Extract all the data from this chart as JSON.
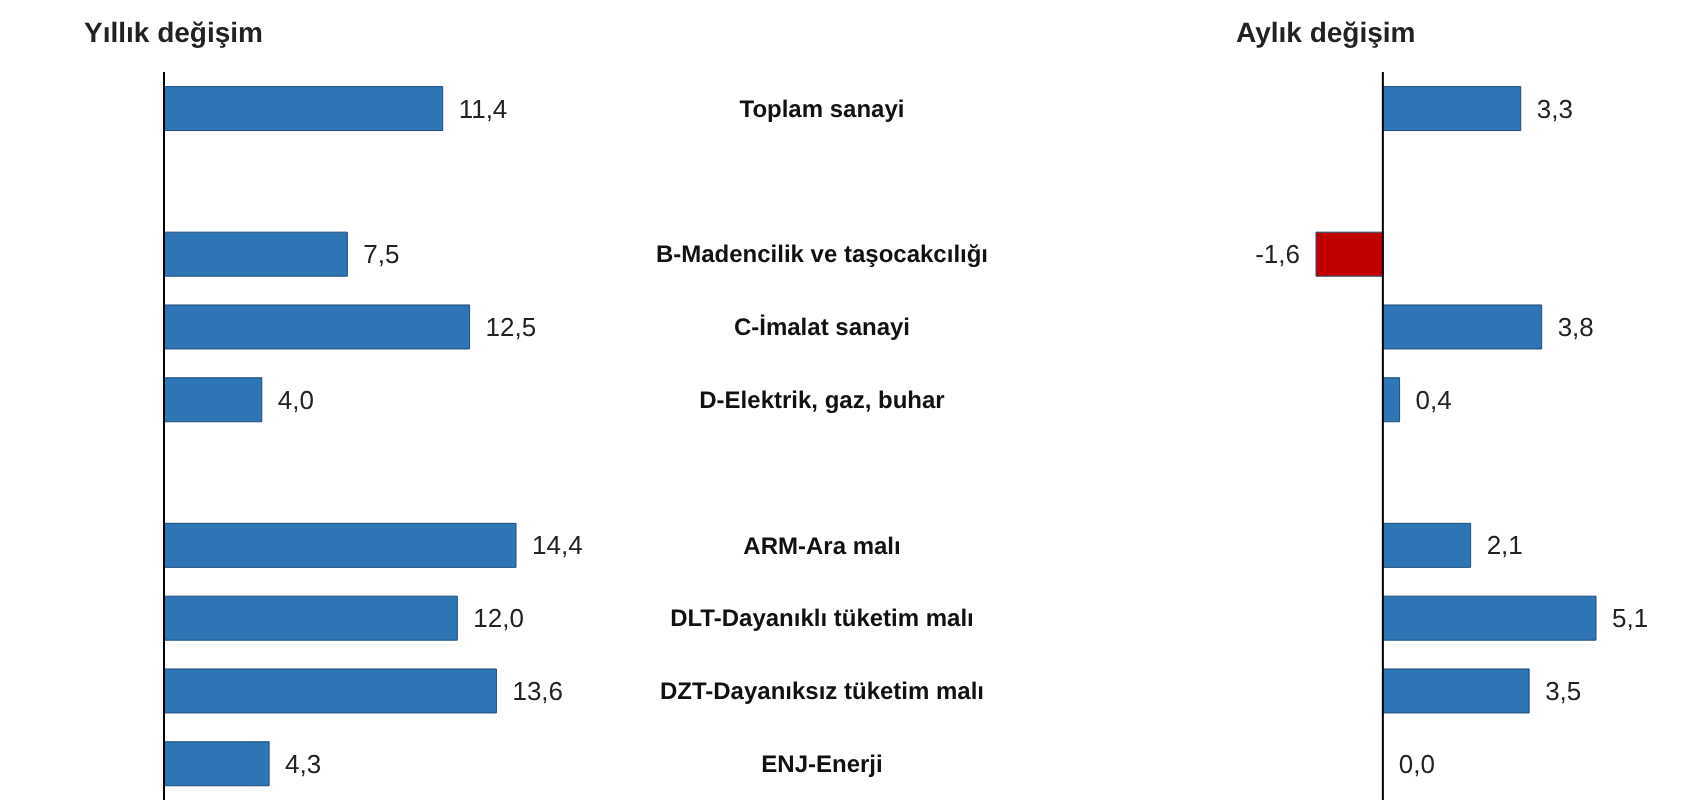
{
  "chart_data": [
    {
      "type": "bar",
      "orientation": "horizontal",
      "title": "Yıllık değişim",
      "categories": [
        "Toplam sanayi",
        null,
        "B-Madencilik ve taşocakcılığı",
        "C-İmalat sanayi",
        "D-Elektrik, gaz, buhar",
        null,
        "ARM-Ara malı",
        "DLT-Dayanıklı tüketim malı",
        "DZT-Dayanıksız tüketim malı",
        "ENJ-Enerji"
      ],
      "values": [
        11.4,
        null,
        7.5,
        12.5,
        4.0,
        null,
        14.4,
        12.0,
        13.6,
        4.3
      ],
      "value_labels": [
        "11,4",
        null,
        "7,5",
        "12,5",
        "4,0",
        null,
        "14,4",
        "12,0",
        "13,6",
        "4,3"
      ],
      "colors": [
        "#2e75b6",
        null,
        "#2e75b6",
        "#2e75b6",
        "#2e75b6",
        null,
        "#2e75b6",
        "#2e75b6",
        "#2e75b6",
        "#2e75b6"
      ],
      "tick_labels": "y",
      "grid": false,
      "legend": false
    },
    {
      "type": "bar",
      "orientation": "horizontal",
      "title": "Aylık değişim",
      "categories": [
        null,
        null,
        null,
        null,
        null,
        null,
        null,
        null,
        null,
        null
      ],
      "values": [
        3.3,
        null,
        -1.6,
        3.8,
        0.4,
        null,
        2.1,
        5.1,
        3.5,
        0.0
      ],
      "value_labels": [
        "3,3",
        null,
        "-1,6",
        "3,8",
        "0,4",
        null,
        "2,1",
        "5,1",
        "3,5",
        "0,0"
      ],
      "colors": [
        "#2e75b6",
        null,
        "#c00000",
        "#2e75b6",
        "#2e75b6",
        null,
        "#2e75b6",
        "#2e75b6",
        "#2e75b6",
        "#2e75b6"
      ],
      "tick_labels": false,
      "grid": false,
      "legend": false
    }
  ]
}
